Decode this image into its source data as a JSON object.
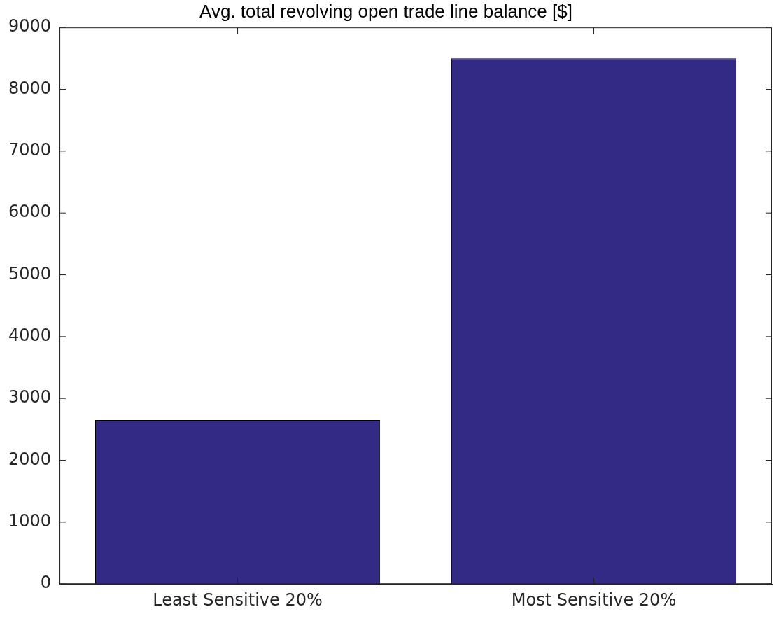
{
  "chart_data": {
    "type": "bar",
    "title": "Avg. total revolving open trade line balance [$]",
    "categories": [
      "Least Sensitive 20%",
      "Most Sensitive 20%"
    ],
    "values": [
      2650,
      8500
    ],
    "color": "#332a85",
    "ylim": [
      0,
      9000
    ],
    "yticks": [
      0,
      1000,
      2000,
      3000,
      4000,
      5000,
      6000,
      7000,
      8000,
      9000
    ],
    "grid": false
  }
}
